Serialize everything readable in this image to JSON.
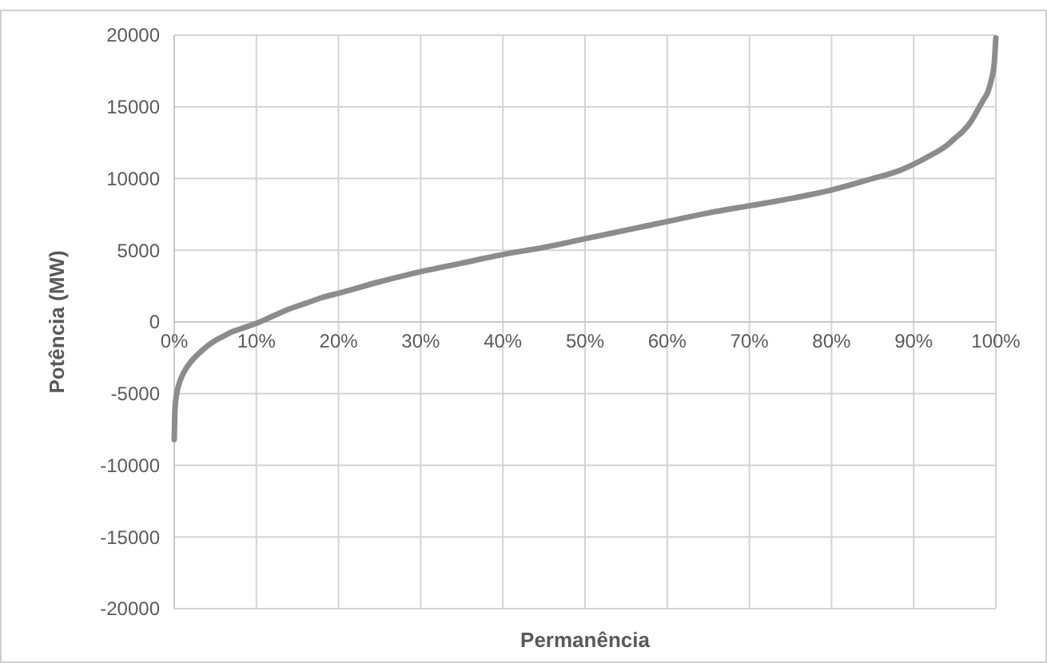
{
  "chart_data": {
    "type": "line",
    "xlabel": "Permanência",
    "ylabel": "Potência (MW)",
    "x": [
      0,
      0.1,
      0.3,
      0.6,
      1,
      1.5,
      2,
      3,
      4,
      5,
      6,
      7,
      8,
      9,
      10,
      12,
      14,
      16,
      18,
      20,
      25,
      30,
      35,
      40,
      45,
      50,
      55,
      60,
      65,
      70,
      75,
      80,
      85,
      88,
      90,
      92,
      94,
      95,
      96,
      97,
      98,
      98.5,
      99,
      99.5,
      99.8,
      100
    ],
    "series": [
      {
        "color": "#8c8c8c",
        "values": [
          -8200,
          -6000,
          -5000,
          -4300,
          -3700,
          -3200,
          -2800,
          -2200,
          -1700,
          -1300,
          -1000,
          -700,
          -500,
          -300,
          -100,
          400,
          900,
          1300,
          1700,
          2000,
          2800,
          3500,
          4100,
          4700,
          5200,
          5800,
          6400,
          7000,
          7600,
          8100,
          8600,
          9200,
          10000,
          10500,
          11000,
          11600,
          12300,
          12800,
          13300,
          14000,
          15000,
          15500,
          16000,
          17000,
          18000,
          19800
        ]
      }
    ],
    "xlim": [
      0,
      100
    ],
    "ylim": [
      -20000,
      20000
    ],
    "xticks": [
      {
        "value": 0,
        "label": "0%"
      },
      {
        "value": 10,
        "label": "10%"
      },
      {
        "value": 20,
        "label": "20%"
      },
      {
        "value": 30,
        "label": "30%"
      },
      {
        "value": 40,
        "label": "40%"
      },
      {
        "value": 50,
        "label": "50%"
      },
      {
        "value": 60,
        "label": "60%"
      },
      {
        "value": 70,
        "label": "70%"
      },
      {
        "value": 80,
        "label": "80%"
      },
      {
        "value": 90,
        "label": "90%"
      },
      {
        "value": 100,
        "label": "100%"
      }
    ],
    "yticks": [
      -20000,
      -15000,
      -10000,
      -5000,
      0,
      5000,
      10000,
      15000,
      20000
    ],
    "grid": true,
    "marker": "none",
    "line_style": "solid"
  }
}
